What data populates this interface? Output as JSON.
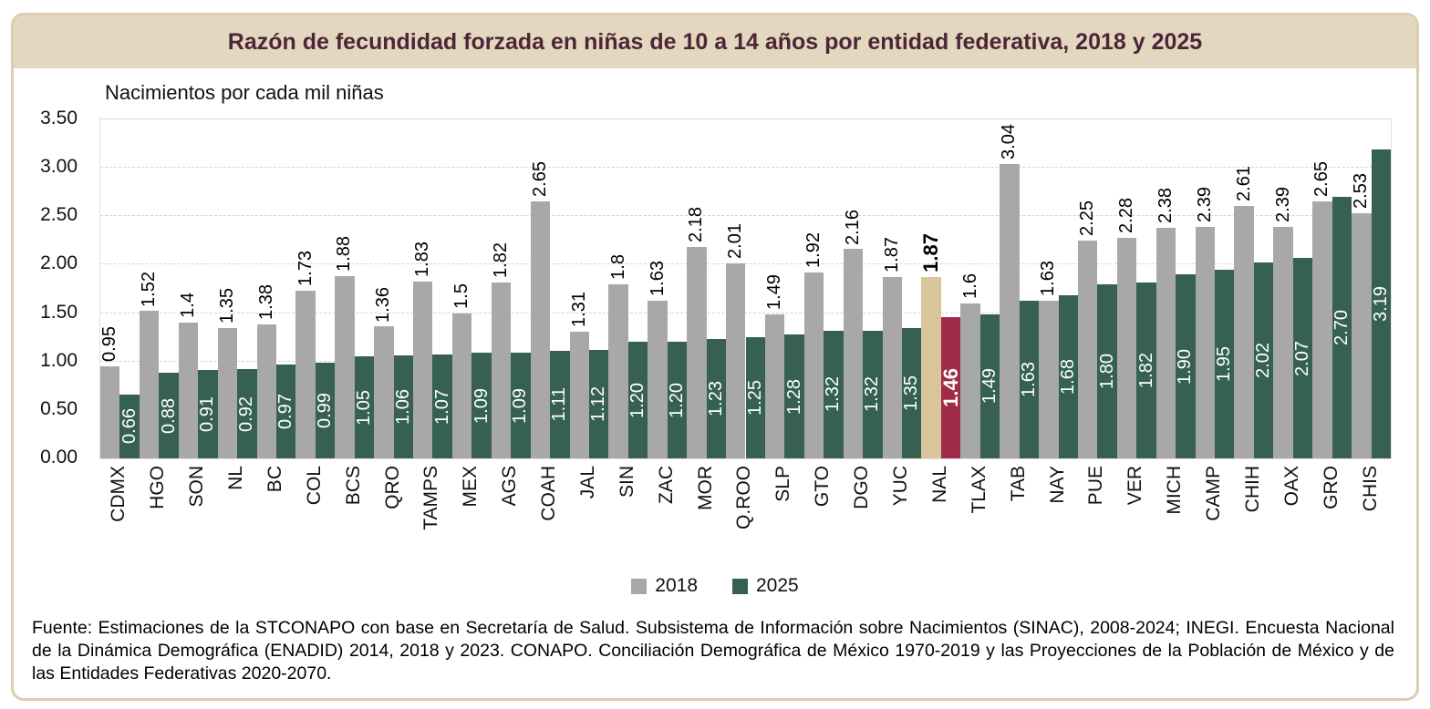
{
  "title": "Razón de fecundidad forzada en niñas de 10 a 14 años por entidad federativa, 2018 y 2025",
  "subtitle": "Nacimientos por cada mil niñas",
  "legend": {
    "items": [
      {
        "label": "2018",
        "color": "#a8a8a8"
      },
      {
        "label": "2025",
        "color": "#356052"
      }
    ]
  },
  "footer": {
    "source": "Fuente: Estimaciones de la STCONAPO con base en Secretaría de Salud. Subsistema de Información sobre Nacimientos (SINAC), 2008-2024; INEGI. Encuesta Nacional de la Dinámica Demográfica (ENADID) 2014, 2018 y 2023. CONAPO. Conciliación Demográfica de México 1970-2019 y las Proyecciones de la Población de México y de las Entidades Federativas 2020-2070."
  },
  "colors": {
    "title_bg": "#e3d8bf",
    "title_text": "#4d2538",
    "frame_border": "#dccdae",
    "bar_2018": "#a8a8a8",
    "bar_2025": "#356052",
    "highlight_2018": "#d8c59c",
    "highlight_2025": "#9e2b47",
    "gridline": "#d4d4d4"
  },
  "chart_data": {
    "type": "bar",
    "title": "Razón de fecundidad forzada en niñas de 10 a 14 años por entidad federativa, 2018 y 2025",
    "ylabel": "Nacimientos por cada mil niñas",
    "xlabel": "",
    "ylim": [
      0,
      3.5
    ],
    "yticks": [
      "0.00",
      "0.50",
      "1.00",
      "1.50",
      "2.00",
      "2.50",
      "3.00",
      "3.50"
    ],
    "grid": "horizontal-dashed",
    "legend_position": "bottom-center",
    "highlight_category": "NAL",
    "categories": [
      "CDMX",
      "HGO",
      "SON",
      "NL",
      "BC",
      "COL",
      "BCS",
      "QRO",
      "TAMPS",
      "MEX",
      "AGS",
      "COAH",
      "JAL",
      "SIN",
      "ZAC",
      "MOR",
      "Q.ROO",
      "SLP",
      "GTO",
      "DGO",
      "YUC",
      "NAL",
      "TLAX",
      "TAB",
      "NAY",
      "PUE",
      "VER",
      "MICH",
      "CAMP",
      "CHIH",
      "OAX",
      "GRO",
      "CHIS"
    ],
    "series": [
      {
        "name": "2018",
        "color": "#a8a8a8",
        "highlight_color": "#d8c59c",
        "values": [
          0.95,
          1.52,
          1.4,
          1.35,
          1.38,
          1.73,
          1.88,
          1.36,
          1.83,
          1.5,
          1.82,
          2.65,
          1.31,
          1.8,
          1.63,
          2.18,
          2.01,
          1.49,
          1.92,
          2.16,
          1.87,
          1.87,
          1.6,
          3.04,
          1.63,
          2.25,
          2.28,
          2.38,
          2.39,
          2.61,
          2.39,
          2.65,
          2.53
        ],
        "labels": [
          "0.95",
          "1.52",
          "1.4",
          "1.35",
          "1.38",
          "1.73",
          "1.88",
          "1.36",
          "1.83",
          "1.5",
          "1.82",
          "2.65",
          "1.31",
          "1.8",
          "1.63",
          "2.18",
          "2.01",
          "1.49",
          "1.92",
          "2.16",
          "1.87",
          "1.87",
          "1.6",
          "3.04",
          "1.63",
          "2.25",
          "2.28",
          "2.38",
          "2.39",
          "2.61",
          "2.39",
          "2.65",
          "2.53"
        ]
      },
      {
        "name": "2025",
        "color": "#356052",
        "highlight_color": "#9e2b47",
        "values": [
          0.66,
          0.88,
          0.91,
          0.92,
          0.97,
          0.99,
          1.05,
          1.06,
          1.07,
          1.09,
          1.09,
          1.11,
          1.12,
          1.2,
          1.2,
          1.23,
          1.25,
          1.28,
          1.32,
          1.32,
          1.35,
          1.46,
          1.49,
          1.63,
          1.68,
          1.8,
          1.82,
          1.9,
          1.95,
          2.02,
          2.07,
          2.7,
          3.19
        ],
        "labels": [
          "0.66",
          "0.88",
          "0.91",
          "0.92",
          "0.97",
          "0.99",
          "1.05",
          "1.06",
          "1.07",
          "1.09",
          "1.09",
          "1.11",
          "1.12",
          "1.20",
          "1.20",
          "1.23",
          "1.25",
          "1.28",
          "1.32",
          "1.32",
          "1.35",
          "1.46",
          "1.49",
          "1.63",
          "1.68",
          "1.80",
          "1.82",
          "1.90",
          "1.95",
          "2.02",
          "2.07",
          "2.70",
          "3.19"
        ]
      }
    ]
  }
}
